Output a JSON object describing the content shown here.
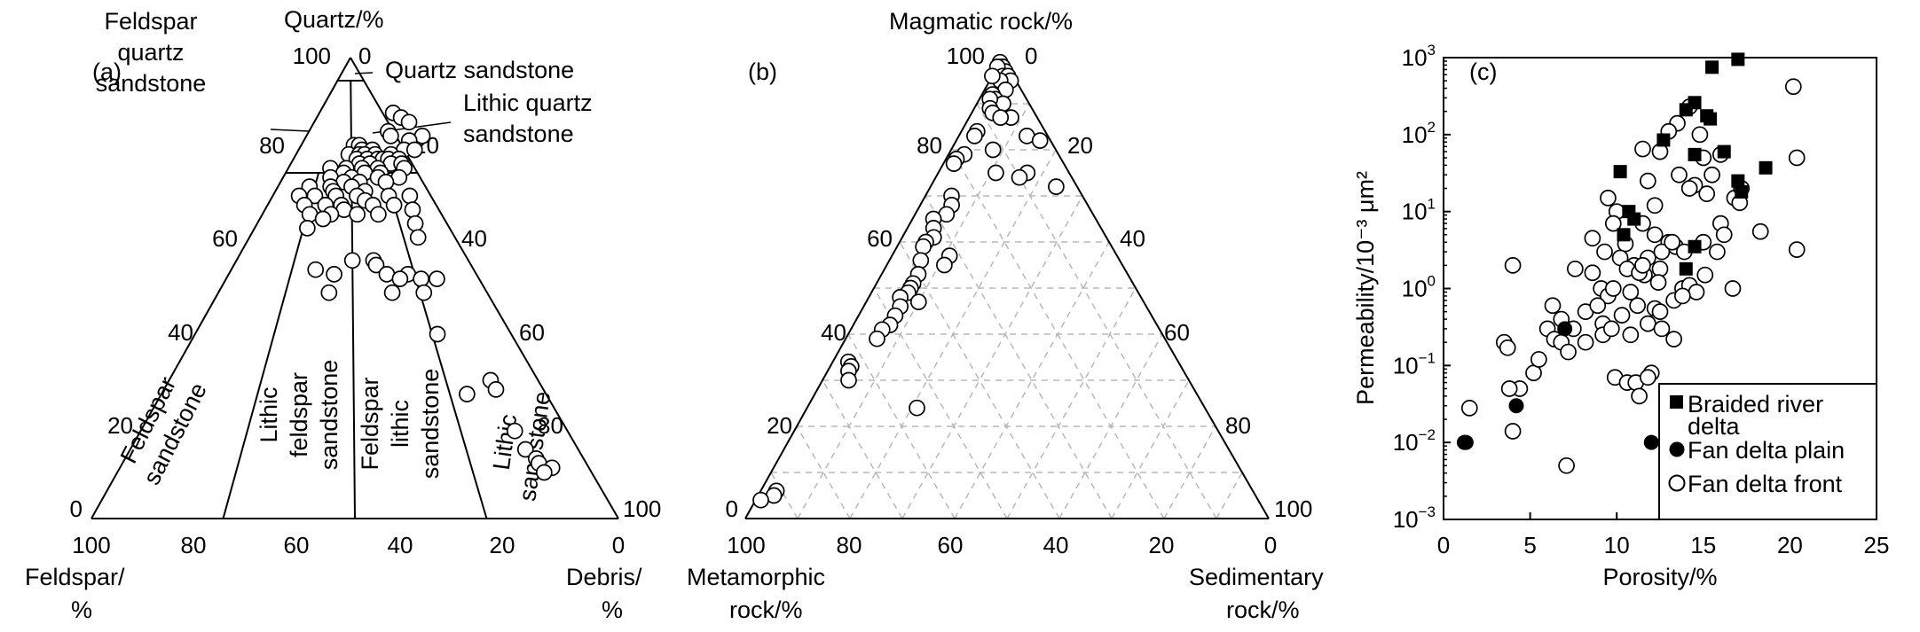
{
  "panel_a": {
    "tag": "(a)",
    "apex_top": "Quartz/%",
    "apex_left": [
      "Feldspar/",
      "%"
    ],
    "apex_right": [
      "Debris/",
      "%"
    ],
    "field_labels": {
      "quartz_sandstone": "Quartz sandstone",
      "feldspar_quartz_sandstone": [
        "Feldspar",
        "quartz",
        "sandstone"
      ],
      "lithic_quartz_sandstone": [
        "Lithic quartz",
        "sandstone"
      ],
      "feldspar_sandstone": [
        "Feldspar",
        "sandstone"
      ],
      "lithic_feldspar_sandstone": [
        "Lithic",
        "feldspar",
        "sandstone"
      ],
      "feldspar_lithic_sandstone": [
        "Feldspar",
        "lithic",
        "sandstone"
      ],
      "lithic_sandstone": [
        "Lithic",
        "sandstone"
      ]
    },
    "quartz_ticks": [
      "100",
      "80",
      "60",
      "40",
      "20",
      "0"
    ],
    "debris_ticks_right": [
      "0",
      "20",
      "40",
      "60",
      "80",
      "100"
    ],
    "bottom_ticks": [
      "100",
      "80",
      "60",
      "40",
      "20",
      "0"
    ]
  },
  "panel_b": {
    "tag": "(b)",
    "apex_top": "Magmatic rock/%",
    "apex_left": [
      "Metamorphic",
      "rock/%"
    ],
    "apex_right": [
      "Sedimentary",
      "rock/%"
    ],
    "left_ticks": [
      "100",
      "80",
      "60",
      "40",
      "20",
      "0"
    ],
    "right_ticks": [
      "0",
      "20",
      "40",
      "60",
      "80",
      "100"
    ],
    "bottom_ticks": [
      "100",
      "80",
      "60",
      "40",
      "20",
      "0"
    ]
  },
  "chart_data": [
    {
      "type": "scatter",
      "panel": "(a)",
      "note": "Ternary plot; points given as [quartz %, debris %]",
      "points": [
        [
          88,
          14
        ],
        [
          87,
          16
        ],
        [
          86,
          18
        ],
        [
          84,
          15
        ],
        [
          83,
          16
        ],
        [
          83,
          22
        ],
        [
          82,
          20
        ],
        [
          81,
          10
        ],
        [
          81,
          11
        ],
        [
          80,
          12
        ],
        [
          80,
          14
        ],
        [
          80,
          20
        ],
        [
          80,
          22
        ],
        [
          79,
          10
        ],
        [
          79,
          12
        ],
        [
          79,
          13
        ],
        [
          79,
          15
        ],
        [
          79,
          18
        ],
        [
          78,
          12
        ],
        [
          78,
          14
        ],
        [
          78,
          16
        ],
        [
          78,
          17
        ],
        [
          78,
          18
        ],
        [
          78,
          20
        ],
        [
          77,
          13
        ],
        [
          77,
          15
        ],
        [
          77,
          19
        ],
        [
          77,
          21
        ],
        [
          76,
          8
        ],
        [
          76,
          11
        ],
        [
          76,
          14
        ],
        [
          76,
          17
        ],
        [
          76,
          22
        ],
        [
          75,
          11
        ],
        [
          75,
          15
        ],
        [
          75,
          18
        ],
        [
          74,
          9
        ],
        [
          74,
          13
        ],
        [
          74,
          18
        ],
        [
          74,
          22
        ],
        [
          73,
          12
        ],
        [
          73,
          15
        ],
        [
          73,
          20
        ],
        [
          72,
          6
        ],
        [
          72,
          10
        ],
        [
          72,
          14
        ],
        [
          71,
          11
        ],
        [
          71,
          17
        ],
        [
          70,
          5
        ],
        [
          70,
          8
        ],
        [
          70,
          12
        ],
        [
          70,
          16
        ],
        [
          70,
          22
        ],
        [
          70,
          26
        ],
        [
          69,
          18
        ],
        [
          68,
          7
        ],
        [
          68,
          11
        ],
        [
          68,
          14
        ],
        [
          68,
          20
        ],
        [
          68,
          24
        ],
        [
          67,
          15
        ],
        [
          67,
          28
        ],
        [
          66,
          9
        ],
        [
          66,
          13
        ],
        [
          66,
          18
        ],
        [
          66,
          22
        ],
        [
          65,
          12
        ],
        [
          64,
          30
        ],
        [
          63,
          10
        ],
        [
          61,
          32
        ],
        [
          56,
          22
        ],
        [
          56,
          26
        ],
        [
          55,
          27
        ],
        [
          54,
          16
        ],
        [
          53,
          20
        ],
        [
          53,
          30
        ],
        [
          53,
          34
        ],
        [
          52,
          40
        ],
        [
          52,
          33
        ],
        [
          52,
          37
        ],
        [
          49,
          21
        ],
        [
          49,
          33
        ],
        [
          49,
          39
        ],
        [
          40,
          46
        ],
        [
          30,
          61
        ],
        [
          28,
          63
        ],
        [
          27,
          58
        ],
        [
          19,
          71
        ],
        [
          15,
          75
        ],
        [
          13,
          78
        ],
        [
          12,
          79
        ],
        [
          11,
          82
        ],
        [
          10,
          81
        ]
      ]
    },
    {
      "type": "scatter",
      "panel": "(b)",
      "note": "Ternary plot; points given as [magmatic %, metamorphic %]",
      "points": [
        [
          99,
          1
        ],
        [
          98,
          1
        ],
        [
          97,
          2
        ],
        [
          97,
          1
        ],
        [
          98,
          2
        ],
        [
          96,
          2
        ],
        [
          96,
          1
        ],
        [
          95,
          1
        ],
        [
          95,
          3
        ],
        [
          96,
          4
        ],
        [
          93,
          3
        ],
        [
          92,
          6
        ],
        [
          91,
          6
        ],
        [
          90,
          5
        ],
        [
          91,
          7
        ],
        [
          89,
          8
        ],
        [
          88,
          8
        ],
        [
          87,
          5
        ],
        [
          87,
          7
        ],
        [
          84,
          13
        ],
        [
          83,
          14
        ],
        [
          83,
          4
        ],
        [
          82,
          2
        ],
        [
          80,
          12
        ],
        [
          79,
          18
        ],
        [
          78,
          20
        ],
        [
          77,
          21
        ],
        [
          75,
          8
        ],
        [
          75,
          14
        ],
        [
          74,
          10
        ],
        [
          72,
          4
        ],
        [
          70,
          25
        ],
        [
          68,
          26
        ],
        [
          66,
          28
        ],
        [
          65,
          31
        ],
        [
          63,
          32
        ],
        [
          61,
          33
        ],
        [
          60,
          35
        ],
        [
          59,
          36
        ],
        [
          57,
          32
        ],
        [
          56,
          38
        ],
        [
          55,
          34
        ],
        [
          53,
          40
        ],
        [
          51,
          42
        ],
        [
          50,
          43
        ],
        [
          49,
          44
        ],
        [
          48,
          46
        ],
        [
          47,
          43
        ],
        [
          46,
          47
        ],
        [
          44,
          49
        ],
        [
          42,
          51
        ],
        [
          41,
          53
        ],
        [
          39,
          55
        ],
        [
          34,
          63
        ],
        [
          33,
          63
        ],
        [
          32,
          64
        ],
        [
          30,
          65
        ],
        [
          24,
          55
        ],
        [
          6,
          91
        ],
        [
          5,
          92
        ],
        [
          4,
          95
        ]
      ]
    },
    {
      "type": "scatter",
      "panel": "(c)",
      "tag": "(c)",
      "xlabel": "Porosity/%",
      "ylabel": "Permeability/10⁻³ μm²",
      "xlim": [
        0,
        25
      ],
      "ylim": [
        0.001,
        1000
      ],
      "yscale": "log",
      "x_ticks": [
        "0",
        "5",
        "10",
        "15",
        "20",
        "25"
      ],
      "y_ticks": [
        {
          "base": "10",
          "exp": "3"
        },
        {
          "base": "10",
          "exp": "2"
        },
        {
          "base": "10",
          "exp": "1"
        },
        {
          "base": "10",
          "exp": "0"
        },
        {
          "base": "10",
          "exp": "−1"
        },
        {
          "base": "10",
          "exp": "−2"
        },
        {
          "base": "10",
          "exp": "−3"
        }
      ],
      "legend_position": "bottom-right",
      "series": [
        {
          "name": "Braided river delta",
          "marker": "square-filled",
          "points": [
            [
              17,
              950
            ],
            [
              15.5,
              750
            ],
            [
              14.5,
              260
            ],
            [
              14,
              210
            ],
            [
              15.2,
              175
            ],
            [
              15.4,
              160
            ],
            [
              12.7,
              85
            ],
            [
              14.5,
              55
            ],
            [
              16.2,
              60
            ],
            [
              10.2,
              33
            ],
            [
              10.7,
              10
            ],
            [
              11,
              8
            ],
            [
              10.4,
              5
            ],
            [
              17,
              25
            ],
            [
              17.2,
              18
            ],
            [
              18.6,
              37
            ],
            [
              14.5,
              3.5
            ],
            [
              14,
              1.8
            ]
          ]
        },
        {
          "name": "Fan delta plain",
          "marker": "circle-filled",
          "points": [
            [
              1.2,
              0.01
            ],
            [
              1.3,
              0.01
            ],
            [
              4.2,
              0.03
            ],
            [
              7,
              0.3
            ],
            [
              12,
              0.01
            ]
          ]
        },
        {
          "name": "Fan delta front",
          "marker": "circle-open",
          "points": [
            [
              20.2,
              420
            ],
            [
              20.4,
              50
            ],
            [
              13.5,
              140
            ],
            [
              14.2,
              230
            ],
            [
              13,
              110
            ],
            [
              12.5,
              60
            ],
            [
              14.8,
              100
            ],
            [
              15,
              50
            ],
            [
              16,
              55
            ],
            [
              15.5,
              30
            ],
            [
              14.5,
              22
            ],
            [
              13.6,
              30
            ],
            [
              14.2,
              20
            ],
            [
              15.2,
              17
            ],
            [
              16.8,
              15
            ],
            [
              17.1,
              13
            ],
            [
              17.2,
              20
            ],
            [
              11.5,
              65
            ],
            [
              11.8,
              25
            ],
            [
              12.2,
              12
            ],
            [
              9.5,
              15
            ],
            [
              10,
              10
            ],
            [
              9.8,
              7
            ],
            [
              11.5,
              7
            ],
            [
              12.2,
              5
            ],
            [
              13,
              4
            ],
            [
              13.4,
              3.5
            ],
            [
              12.6,
              3
            ],
            [
              11.8,
              2.5
            ],
            [
              11,
              2
            ],
            [
              11.6,
              1.5
            ],
            [
              12.5,
              1.8
            ],
            [
              13.2,
              4
            ],
            [
              13.9,
              3
            ],
            [
              15,
              4
            ],
            [
              15.8,
              3
            ],
            [
              16,
              7
            ],
            [
              16.2,
              5
            ],
            [
              18.3,
              5.5
            ],
            [
              20.4,
              3.2
            ],
            [
              10.5,
              3.8
            ],
            [
              8.6,
              4.5
            ],
            [
              9.3,
              3
            ],
            [
              10.2,
              2.5
            ],
            [
              10.6,
              1.8
            ],
            [
              11.3,
              1.6
            ],
            [
              11.5,
              2
            ],
            [
              12.4,
              1.2
            ],
            [
              13.8,
              1
            ],
            [
              14.2,
              1.1
            ],
            [
              14.6,
              0.9
            ],
            [
              15.1,
              1.5
            ],
            [
              16.7,
              1
            ],
            [
              4,
              2
            ],
            [
              7.6,
              1.8
            ],
            [
              8.6,
              1.6
            ],
            [
              9.1,
              1
            ],
            [
              9.5,
              0.8
            ],
            [
              9.8,
              1
            ],
            [
              10.8,
              0.9
            ],
            [
              11.2,
              0.6
            ],
            [
              12.2,
              0.55
            ],
            [
              12.5,
              0.5
            ],
            [
              13.3,
              0.7
            ],
            [
              13.8,
              0.8
            ],
            [
              6.3,
              0.6
            ],
            [
              6.8,
              0.4
            ],
            [
              7.5,
              0.3
            ],
            [
              8.2,
              0.5
            ],
            [
              8.9,
              0.6
            ],
            [
              9.2,
              0.35
            ],
            [
              9.2,
              0.25
            ],
            [
              9.7,
              0.3
            ],
            [
              10.3,
              0.45
            ],
            [
              10.8,
              0.25
            ],
            [
              11.8,
              0.35
            ],
            [
              12.6,
              0.3
            ],
            [
              13.3,
              0.22
            ],
            [
              5.2,
              0.08
            ],
            [
              5.5,
              0.12
            ],
            [
              6,
              0.3
            ],
            [
              6.4,
              0.22
            ],
            [
              6.8,
              0.2
            ],
            [
              7.2,
              0.15
            ],
            [
              8.2,
              0.2
            ],
            [
              3.5,
              0.2
            ],
            [
              3.7,
              0.17
            ],
            [
              4.4,
              0.05
            ],
            [
              3.8,
              0.05
            ],
            [
              9.9,
              0.07
            ],
            [
              10.6,
              0.06
            ],
            [
              11.1,
              0.06
            ],
            [
              11.3,
              0.04
            ],
            [
              12,
              0.08
            ],
            [
              11.8,
              0.07
            ],
            [
              4,
              0.014
            ],
            [
              1.5,
              0.028
            ],
            [
              7.1,
              0.005
            ]
          ]
        }
      ]
    }
  ]
}
